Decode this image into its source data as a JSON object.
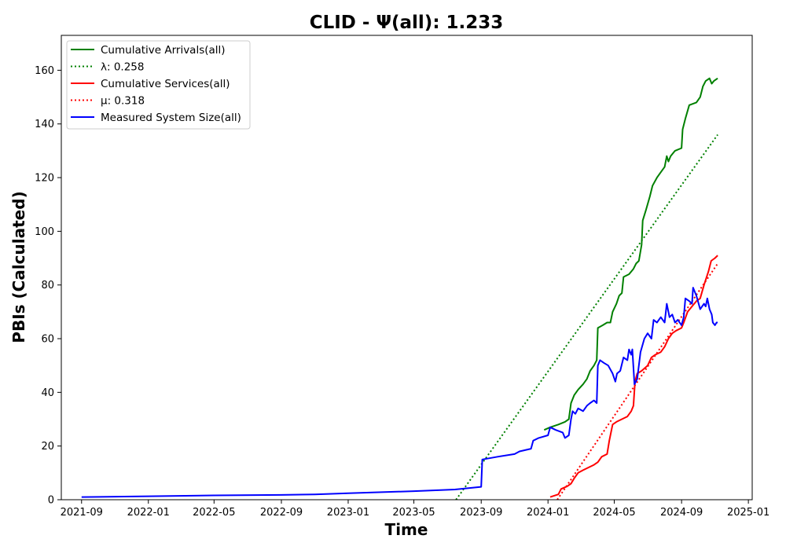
{
  "chart_data": {
    "type": "line",
    "title": "CLID -  Ψ(all): 1.233",
    "xlabel": "Time",
    "ylabel": "PBIs (Calculated)",
    "xlim": [
      "2021-07-26",
      "2025-01-08"
    ],
    "ylim": [
      0,
      173
    ],
    "x_ticks": [
      "2021-09",
      "2022-01",
      "2022-05",
      "2022-09",
      "2023-01",
      "2023-05",
      "2023-09",
      "2024-01",
      "2024-05",
      "2024-09",
      "2025-01"
    ],
    "y_ticks": [
      0,
      20,
      40,
      60,
      80,
      100,
      120,
      140,
      160
    ],
    "grid": false,
    "legend_position": "top-left",
    "series": [
      {
        "name": "Cumulative Arrivals(all)",
        "color": "#008000",
        "style": "solid",
        "points": [
          [
            "2023-12-25",
            26
          ],
          [
            "2024-01-05",
            27
          ],
          [
            "2024-01-20",
            28
          ],
          [
            "2024-02-01",
            29
          ],
          [
            "2024-02-08",
            30
          ],
          [
            "2024-02-12",
            36
          ],
          [
            "2024-02-18",
            39
          ],
          [
            "2024-02-25",
            41
          ],
          [
            "2024-03-05",
            43
          ],
          [
            "2024-03-12",
            45
          ],
          [
            "2024-03-18",
            48
          ],
          [
            "2024-03-25",
            50
          ],
          [
            "2024-03-30",
            52
          ],
          [
            "2024-04-01",
            64
          ],
          [
            "2024-04-10",
            65
          ],
          [
            "2024-04-18",
            66
          ],
          [
            "2024-04-24",
            66
          ],
          [
            "2024-04-28",
            70
          ],
          [
            "2024-05-05",
            73
          ],
          [
            "2024-05-10",
            76
          ],
          [
            "2024-05-15",
            77
          ],
          [
            "2024-05-18",
            83
          ],
          [
            "2024-05-28",
            84
          ],
          [
            "2024-06-05",
            86
          ],
          [
            "2024-06-10",
            88
          ],
          [
            "2024-06-15",
            89
          ],
          [
            "2024-06-20",
            95
          ],
          [
            "2024-06-22",
            104
          ],
          [
            "2024-06-28",
            108
          ],
          [
            "2024-07-05",
            113
          ],
          [
            "2024-07-10",
            117
          ],
          [
            "2024-07-18",
            120
          ],
          [
            "2024-07-25",
            122
          ],
          [
            "2024-08-01",
            124
          ],
          [
            "2024-08-05",
            128
          ],
          [
            "2024-08-08",
            126
          ],
          [
            "2024-08-12",
            128
          ],
          [
            "2024-08-20",
            130
          ],
          [
            "2024-09-01",
            131
          ],
          [
            "2024-09-03",
            138
          ],
          [
            "2024-09-08",
            142
          ],
          [
            "2024-09-15",
            147
          ],
          [
            "2024-09-28",
            148
          ],
          [
            "2024-10-05",
            150
          ],
          [
            "2024-10-10",
            154
          ],
          [
            "2024-10-15",
            156
          ],
          [
            "2024-10-22",
            157
          ],
          [
            "2024-10-26",
            155
          ],
          [
            "2024-10-30",
            156
          ],
          [
            "2024-11-06",
            157
          ]
        ]
      },
      {
        "name": "λ: 0.258",
        "color": "#008000",
        "style": "dotted",
        "points": [
          [
            "2023-07-17",
            0
          ],
          [
            "2024-11-06",
            136
          ]
        ]
      },
      {
        "name": "Cumulative Services(all)",
        "color": "#ff0000",
        "style": "solid",
        "points": [
          [
            "2024-01-05",
            1
          ],
          [
            "2024-01-20",
            2
          ],
          [
            "2024-01-25",
            4
          ],
          [
            "2024-02-05",
            5
          ],
          [
            "2024-02-12",
            6
          ],
          [
            "2024-02-18",
            8
          ],
          [
            "2024-02-25",
            10
          ],
          [
            "2024-03-05",
            11
          ],
          [
            "2024-03-15",
            12
          ],
          [
            "2024-03-25",
            13
          ],
          [
            "2024-04-01",
            14
          ],
          [
            "2024-04-08",
            16
          ],
          [
            "2024-04-18",
            17
          ],
          [
            "2024-04-22",
            22
          ],
          [
            "2024-04-28",
            28
          ],
          [
            "2024-05-05",
            29
          ],
          [
            "2024-05-15",
            30
          ],
          [
            "2024-05-25",
            31
          ],
          [
            "2024-06-01",
            33
          ],
          [
            "2024-06-05",
            35
          ],
          [
            "2024-06-08",
            44
          ],
          [
            "2024-06-12",
            47
          ],
          [
            "2024-06-20",
            48
          ],
          [
            "2024-07-01",
            50
          ],
          [
            "2024-07-08",
            53
          ],
          [
            "2024-07-15",
            54
          ],
          [
            "2024-07-25",
            55
          ],
          [
            "2024-08-01",
            57
          ],
          [
            "2024-08-08",
            60
          ],
          [
            "2024-08-15",
            62
          ],
          [
            "2024-08-22",
            63
          ],
          [
            "2024-09-01",
            64
          ],
          [
            "2024-09-05",
            66
          ],
          [
            "2024-09-12",
            70
          ],
          [
            "2024-09-20",
            72
          ],
          [
            "2024-09-28",
            74
          ],
          [
            "2024-10-05",
            75
          ],
          [
            "2024-10-12",
            80
          ],
          [
            "2024-10-20",
            85
          ],
          [
            "2024-10-25",
            89
          ],
          [
            "2024-11-01",
            90
          ],
          [
            "2024-11-06",
            91
          ]
        ]
      },
      {
        "name": "μ: 0.318",
        "color": "#ff0000",
        "style": "dotted",
        "points": [
          [
            "2024-01-18",
            0
          ],
          [
            "2024-11-06",
            88
          ]
        ]
      },
      {
        "name": "Measured System Size(all)",
        "color": "#0000ff",
        "style": "solid",
        "points": [
          [
            "2021-09-01",
            1
          ],
          [
            "2022-01-01",
            1.3
          ],
          [
            "2022-05-01",
            1.6
          ],
          [
            "2022-09-01",
            1.8
          ],
          [
            "2022-11-01",
            2
          ],
          [
            "2023-01-01",
            2.4
          ],
          [
            "2023-05-01",
            3.2
          ],
          [
            "2023-07-15",
            3.8
          ],
          [
            "2023-09-01",
            4.8
          ],
          [
            "2023-09-03",
            15
          ],
          [
            "2023-10-01",
            16
          ],
          [
            "2023-11-01",
            17
          ],
          [
            "2023-11-10",
            18
          ],
          [
            "2023-12-01",
            19
          ],
          [
            "2023-12-05",
            22
          ],
          [
            "2023-12-15",
            23
          ],
          [
            "2024-01-01",
            24
          ],
          [
            "2024-01-05",
            27
          ],
          [
            "2024-01-15",
            26
          ],
          [
            "2024-01-28",
            25
          ],
          [
            "2024-02-01",
            23
          ],
          [
            "2024-02-08",
            24
          ],
          [
            "2024-02-12",
            30
          ],
          [
            "2024-02-15",
            33
          ],
          [
            "2024-02-20",
            32
          ],
          [
            "2024-02-25",
            34
          ],
          [
            "2024-03-05",
            33
          ],
          [
            "2024-03-12",
            35
          ],
          [
            "2024-03-18",
            36
          ],
          [
            "2024-03-25",
            37
          ],
          [
            "2024-03-30",
            36
          ],
          [
            "2024-04-01",
            50
          ],
          [
            "2024-04-05",
            52
          ],
          [
            "2024-04-12",
            51
          ],
          [
            "2024-04-20",
            50
          ],
          [
            "2024-04-28",
            47
          ],
          [
            "2024-05-03",
            44
          ],
          [
            "2024-05-06",
            47
          ],
          [
            "2024-05-12",
            48
          ],
          [
            "2024-05-18",
            53
          ],
          [
            "2024-05-25",
            52
          ],
          [
            "2024-05-28",
            56
          ],
          [
            "2024-06-01",
            54
          ],
          [
            "2024-06-03",
            56
          ],
          [
            "2024-06-07",
            43
          ],
          [
            "2024-06-12",
            45
          ],
          [
            "2024-06-18",
            55
          ],
          [
            "2024-06-25",
            60
          ],
          [
            "2024-07-01",
            62
          ],
          [
            "2024-07-08",
            60
          ],
          [
            "2024-07-12",
            67
          ],
          [
            "2024-07-18",
            66
          ],
          [
            "2024-07-25",
            68
          ],
          [
            "2024-08-01",
            66
          ],
          [
            "2024-08-05",
            73
          ],
          [
            "2024-08-10",
            68
          ],
          [
            "2024-08-15",
            69
          ],
          [
            "2024-08-20",
            66
          ],
          [
            "2024-08-25",
            67
          ],
          [
            "2024-09-01",
            65
          ],
          [
            "2024-09-05",
            68
          ],
          [
            "2024-09-08",
            75
          ],
          [
            "2024-09-15",
            74
          ],
          [
            "2024-09-20",
            73
          ],
          [
            "2024-09-22",
            79
          ],
          [
            "2024-09-28",
            76
          ],
          [
            "2024-10-05",
            71
          ],
          [
            "2024-10-12",
            73
          ],
          [
            "2024-10-15",
            72
          ],
          [
            "2024-10-18",
            75
          ],
          [
            "2024-10-22",
            71
          ],
          [
            "2024-10-26",
            69
          ],
          [
            "2024-10-28",
            66
          ],
          [
            "2024-11-01",
            65
          ],
          [
            "2024-11-04",
            66
          ],
          [
            "2024-11-06",
            66
          ]
        ]
      }
    ]
  }
}
